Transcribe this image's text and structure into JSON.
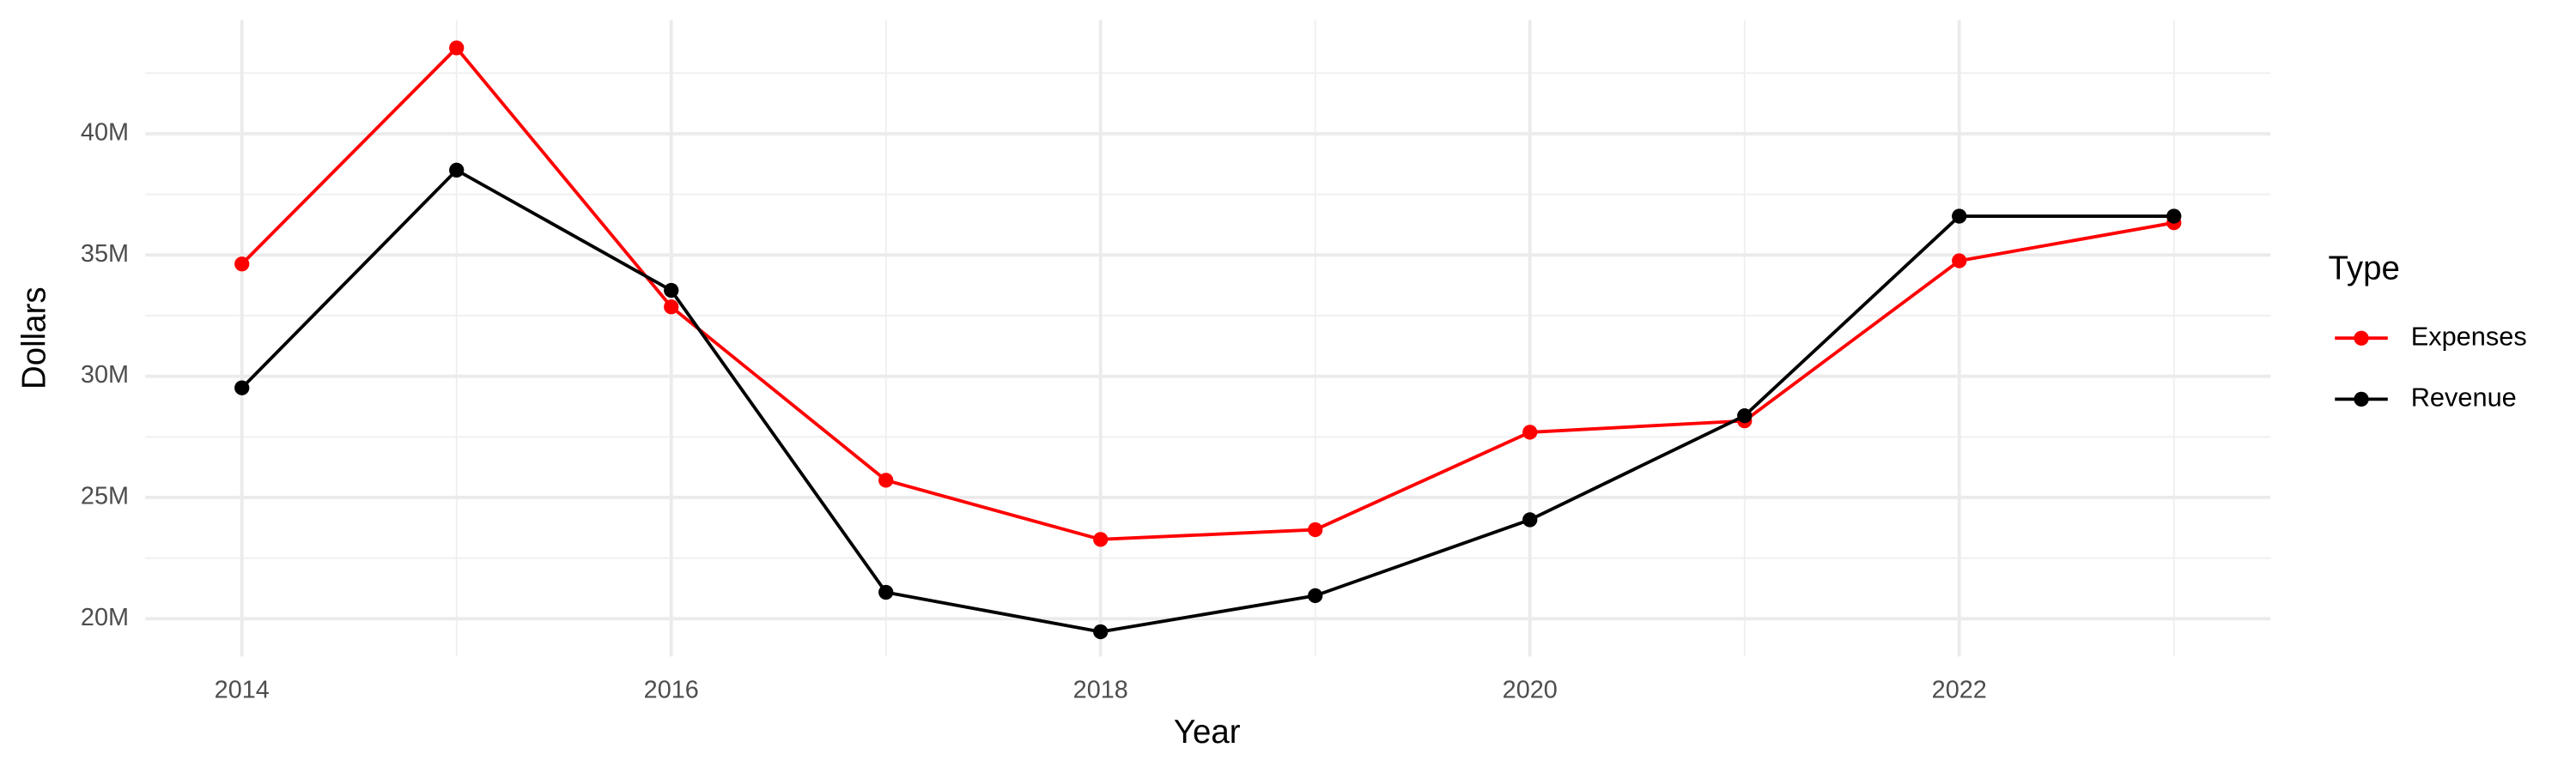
{
  "chart_data": {
    "type": "line",
    "x_label": "Year",
    "y_label": "Dollars",
    "legend_title": "Type",
    "x": [
      2014,
      2015,
      2016,
      2017,
      2018,
      2019,
      2020,
      2021,
      2022,
      2023
    ],
    "series": [
      {
        "name": "Expenses",
        "color": "#ff0000",
        "values": [
          34630000,
          43540000,
          32860000,
          25710000,
          23270000,
          23670000,
          27690000,
          28160000,
          34760000,
          36330000
        ]
      },
      {
        "name": "Revenue",
        "color": "#000000",
        "values": [
          29520000,
          38500000,
          33540000,
          21090000,
          19460000,
          20950000,
          24080000,
          28370000,
          36600000,
          36600000
        ]
      }
    ],
    "xlim": [
      2013.55,
      2023.45
    ],
    "xticks": [
      2014,
      2016,
      2018,
      2020,
      2022
    ],
    "x_minor_ticks": [
      2015,
      2017,
      2019,
      2021,
      2023
    ],
    "ylim": [
      18440000,
      44700000
    ],
    "yticks": [
      {
        "value": 20000000,
        "label": "20M"
      },
      {
        "value": 25000000,
        "label": "25M"
      },
      {
        "value": 30000000,
        "label": "30M"
      },
      {
        "value": 35000000,
        "label": "35M"
      },
      {
        "value": 40000000,
        "label": "40M"
      }
    ],
    "y_minor_ticks": [
      22500000,
      27500000,
      32500000,
      37500000,
      42500000
    ],
    "grid": true,
    "legend_position": "right"
  }
}
